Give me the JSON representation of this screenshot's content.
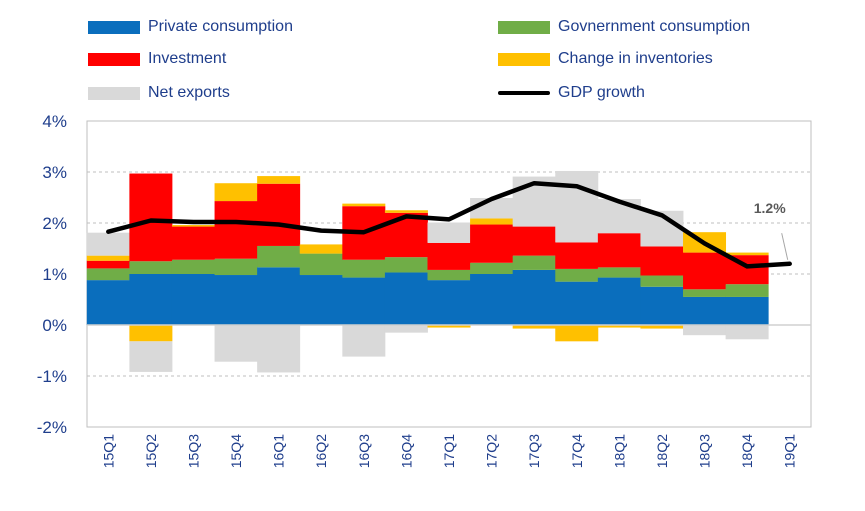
{
  "colors": {
    "private": "#0a6ebd",
    "government": "#70ad47",
    "investment": "#ff0000",
    "inventories": "#ffc000",
    "netexports": "#d9d9d9",
    "gdp": "#000000",
    "axis_text": "#1f3e8c",
    "grid": "#bfbfbf"
  },
  "chart_data": {
    "type": "bar",
    "subtype": "stacked bar with line overlay",
    "categories": [
      "15Q1",
      "15Q2",
      "15Q3",
      "15Q4",
      "16Q1",
      "16Q2",
      "16Q3",
      "16Q4",
      "17Q1",
      "17Q2",
      "17Q3",
      "17Q4",
      "18Q1",
      "18Q2",
      "18Q3",
      "18Q4",
      "19Q1"
    ],
    "series": [
      {
        "name": "Private consumption",
        "color_key": "private",
        "values": [
          0.88,
          1.0,
          1.0,
          0.98,
          1.13,
          0.98,
          0.93,
          1.03,
          0.88,
          1.0,
          1.08,
          0.85,
          0.93,
          0.75,
          0.55,
          0.55,
          null
        ]
      },
      {
        "name": "Govnernment consumption",
        "color_key": "government",
        "values": [
          0.23,
          0.25,
          0.28,
          0.32,
          0.42,
          0.42,
          0.35,
          0.3,
          0.2,
          0.22,
          0.28,
          0.25,
          0.2,
          0.22,
          0.15,
          0.25,
          null
        ]
      },
      {
        "name": "Investment",
        "color_key": "investment",
        "values": [
          0.15,
          1.72,
          0.65,
          1.13,
          1.22,
          0.0,
          1.05,
          0.87,
          0.53,
          0.75,
          0.57,
          0.52,
          0.67,
          0.57,
          0.72,
          0.57,
          null
        ]
      },
      {
        "name": "Change in inventories",
        "color_key": "inventories",
        "values": [
          0.1,
          -0.32,
          0.03,
          0.35,
          0.15,
          0.18,
          0.05,
          0.05,
          -0.05,
          0.12,
          -0.07,
          -0.32,
          -0.05,
          -0.07,
          0.4,
          0.05,
          null
        ]
      },
      {
        "name": "Net exports",
        "color_key": "netexports",
        "values": [
          0.45,
          -0.6,
          0.0,
          -0.72,
          -0.93,
          0.0,
          -0.62,
          -0.15,
          0.4,
          0.4,
          0.98,
          1.4,
          0.67,
          0.7,
          -0.2,
          -0.28,
          null
        ]
      }
    ],
    "line": {
      "name": "GDP growth",
      "color_key": "gdp",
      "values": [
        1.83,
        2.05,
        2.02,
        2.02,
        1.97,
        1.85,
        1.82,
        2.13,
        2.07,
        2.47,
        2.78,
        2.72,
        2.42,
        2.15,
        1.6,
        1.15,
        1.2
      ]
    },
    "annotation": {
      "text": "1.2%",
      "category": "19Q1",
      "value": 1.2
    },
    "y_ticks": [
      "4%",
      "3%",
      "2%",
      "1%",
      "0%",
      "-1%",
      "-2%"
    ],
    "ylim": [
      -2,
      4
    ],
    "grid": true,
    "legend_placement": "top"
  }
}
